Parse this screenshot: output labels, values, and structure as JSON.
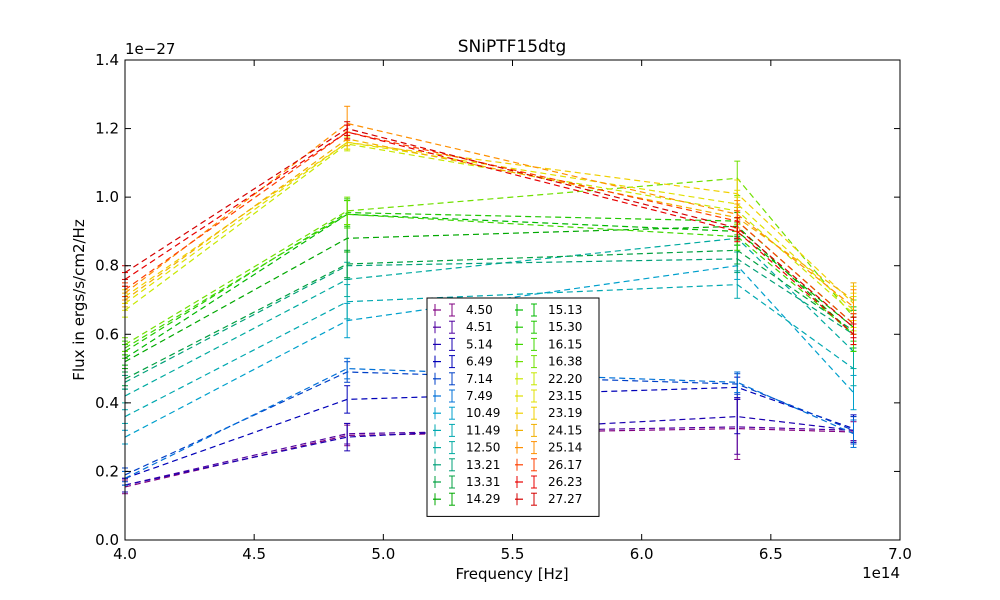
{
  "chart_data": {
    "type": "line",
    "title": "SNiPTF15dtg",
    "xlabel": "Frequency [Hz]",
    "ylabel": "Flux in ergs/s/cm2/Hz",
    "x_offset_label": "1e14",
    "y_offset_label": "1e−27",
    "xlim": [
      4.0,
      7.0
    ],
    "ylim": [
      0.0,
      1.4
    ],
    "x_ticks": [
      "4.0",
      "4.5",
      "5.0",
      "5.5",
      "6.0",
      "6.5",
      "7.0"
    ],
    "y_ticks": [
      "0.0",
      "0.2",
      "0.4",
      "0.6",
      "0.8",
      "1.0",
      "1.2",
      "1.4"
    ],
    "x": [
      4.0,
      4.86,
      6.37,
      6.82
    ],
    "legend_placement": "lower-center",
    "series": [
      {
        "name": "4.50",
        "color": "#800080",
        "values": [
          0.155,
          0.305,
          0.325,
          0.315
        ],
        "errors": [
          0.02,
          0.03,
          0.09,
          0.03
        ]
      },
      {
        "name": "4.51",
        "color": "#5000a0",
        "values": [
          0.16,
          0.31,
          0.33,
          0.32
        ],
        "errors": [
          0.02,
          0.03,
          0.08,
          0.03
        ]
      },
      {
        "name": "5.14",
        "color": "#1a00b0",
        "values": [
          0.16,
          0.3,
          0.36,
          0.32
        ],
        "errors": [
          0.02,
          0.04,
          0.05,
          0.04
        ]
      },
      {
        "name": "6.49",
        "color": "#0000b8",
        "values": [
          0.18,
          0.41,
          0.445,
          0.325
        ],
        "errors": [
          0.02,
          0.04,
          0.03,
          0.04
        ]
      },
      {
        "name": "7.14",
        "color": "#0040c8",
        "values": [
          0.19,
          0.49,
          0.455,
          0.32
        ],
        "errors": [
          0.02,
          0.03,
          0.03,
          0.04
        ]
      },
      {
        "name": "7.49",
        "color": "#0070d8",
        "values": [
          0.18,
          0.5,
          0.46,
          0.31
        ],
        "errors": [
          0.02,
          0.03,
          0.03,
          0.04
        ]
      },
      {
        "name": "10.49",
        "color": "#00a0cc",
        "values": [
          0.3,
          0.64,
          0.8,
          0.43
        ],
        "errors": [
          0.02,
          0.05,
          0.04,
          0.05
        ]
      },
      {
        "name": "11.49",
        "color": "#00a8b0",
        "values": [
          0.36,
          0.695,
          0.745,
          0.5
        ],
        "errors": [
          0.02,
          0.05,
          0.04,
          0.05
        ]
      },
      {
        "name": "12.50",
        "color": "#00aaa0",
        "values": [
          0.42,
          0.76,
          0.88,
          0.55
        ],
        "errors": [
          0.02,
          0.05,
          0.04,
          0.05
        ]
      },
      {
        "name": "13.21",
        "color": "#00a078",
        "values": [
          0.46,
          0.8,
          0.82,
          0.6
        ],
        "errors": [
          0.02,
          0.04,
          0.04,
          0.05
        ]
      },
      {
        "name": "13.31",
        "color": "#00a040",
        "values": [
          0.47,
          0.805,
          0.845,
          0.61
        ],
        "errors": [
          0.02,
          0.04,
          0.04,
          0.05
        ]
      },
      {
        "name": "14.29",
        "color": "#00a800",
        "values": [
          0.52,
          0.88,
          0.915,
          0.6
        ],
        "errors": [
          0.02,
          0.04,
          0.04,
          0.05
        ]
      },
      {
        "name": "15.13",
        "color": "#00b800",
        "values": [
          0.53,
          0.95,
          0.9,
          0.62
        ],
        "errors": [
          0.02,
          0.04,
          0.04,
          0.05
        ]
      },
      {
        "name": "15.30",
        "color": "#20c800",
        "values": [
          0.55,
          0.955,
          0.93,
          0.63
        ],
        "errors": [
          0.02,
          0.04,
          0.04,
          0.05
        ]
      },
      {
        "name": "16.15",
        "color": "#40d800",
        "values": [
          0.56,
          0.95,
          0.885,
          0.6
        ],
        "errors": [
          0.02,
          0.04,
          0.04,
          0.05
        ]
      },
      {
        "name": "16.38",
        "color": "#70e000",
        "values": [
          0.57,
          0.96,
          1.055,
          0.65
        ],
        "errors": [
          0.02,
          0.04,
          0.05,
          0.05
        ]
      },
      {
        "name": "22.20",
        "color": "#c8e800",
        "values": [
          0.67,
          1.155,
          0.96,
          0.66
        ],
        "errors": [
          0.02,
          0.02,
          0.04,
          0.05
        ]
      },
      {
        "name": "23.15",
        "color": "#e0e000",
        "values": [
          0.69,
          1.16,
          0.98,
          0.67
        ],
        "errors": [
          0.02,
          0.02,
          0.04,
          0.05
        ]
      },
      {
        "name": "23.19",
        "color": "#f0d000",
        "values": [
          0.71,
          1.16,
          1.01,
          0.69
        ],
        "errors": [
          0.02,
          0.02,
          0.04,
          0.05
        ]
      },
      {
        "name": "24.15",
        "color": "#f0b000",
        "values": [
          0.7,
          1.17,
          0.94,
          0.7
        ],
        "errors": [
          0.02,
          0.02,
          0.04,
          0.05
        ]
      },
      {
        "name": "25.14",
        "color": "#ff9000",
        "values": [
          0.72,
          1.215,
          0.95,
          0.68
        ],
        "errors": [
          0.02,
          0.05,
          0.04,
          0.05
        ]
      },
      {
        "name": "26.17",
        "color": "#ff4000",
        "values": [
          0.73,
          1.19,
          0.93,
          0.63
        ],
        "errors": [
          0.02,
          0.02,
          0.03,
          0.03
        ]
      },
      {
        "name": "26.23",
        "color": "#e80000",
        "values": [
          0.76,
          1.19,
          0.9,
          0.6
        ],
        "errors": [
          0.02,
          0.02,
          0.03,
          0.03
        ]
      },
      {
        "name": "27.27",
        "color": "#d40000",
        "values": [
          0.78,
          1.2,
          0.91,
          0.62
        ],
        "errors": [
          0.02,
          0.02,
          0.03,
          0.03
        ]
      }
    ]
  }
}
